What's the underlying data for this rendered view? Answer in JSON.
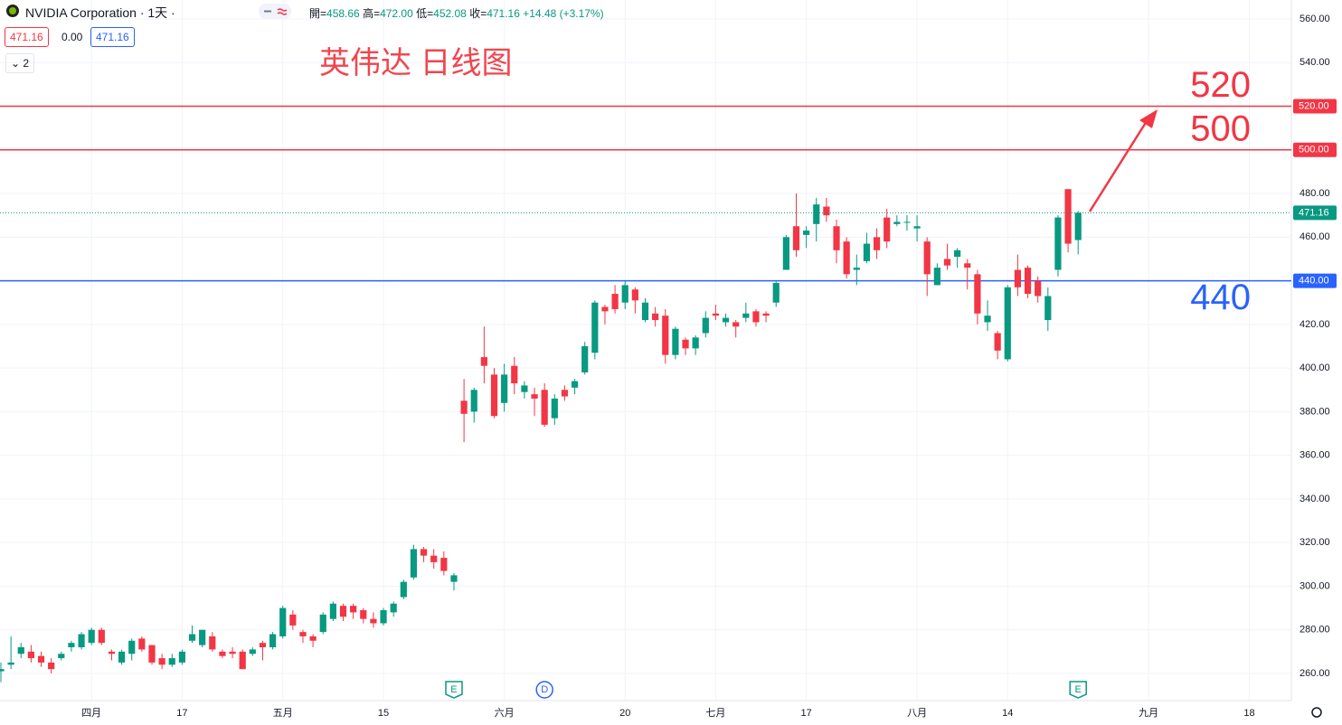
{
  "header": {
    "symbol": "NVIDIA Corporation · 1天 ·",
    "ohlc": [
      {
        "label": "開=",
        "value": "458.66"
      },
      {
        "label": "高=",
        "value": "472.00"
      },
      {
        "label": "低=",
        "value": "452.08"
      },
      {
        "label": "收=",
        "value": "471.16"
      }
    ],
    "change": "+14.48 (+3.17%)",
    "bid": "471.16",
    "spread": "0.00",
    "ask": "471.16",
    "indicator_count": "2"
  },
  "chart_data": {
    "type": "candlestick",
    "annotation": "英伟达 日线图",
    "up_color": "#089981",
    "down_color": "#f23645",
    "grid": true,
    "ylim": [
      247.56,
      568.7
    ],
    "yticks": [
      {
        "value": 260,
        "label": "260.00"
      },
      {
        "value": 280,
        "label": "280.00"
      },
      {
        "value": 300,
        "label": "300.00"
      },
      {
        "value": 320,
        "label": "320.00"
      },
      {
        "value": 340,
        "label": "340.00"
      },
      {
        "value": 360,
        "label": "360.00"
      },
      {
        "value": 380,
        "label": "380.00"
      },
      {
        "value": 400,
        "label": "400.00"
      },
      {
        "value": 420,
        "label": "420.00"
      },
      {
        "value": 440,
        "label": "440.00"
      },
      {
        "value": 460,
        "label": "460.00"
      },
      {
        "value": 480,
        "label": "480.00"
      },
      {
        "value": 500,
        "label": "500.00"
      },
      {
        "value": 520,
        "label": "520.00"
      },
      {
        "value": 540,
        "label": "540.00"
      },
      {
        "value": 560,
        "label": "560.00"
      }
    ],
    "levels": [
      {
        "value": 520,
        "label": "520",
        "axis_label": "520.00",
        "color": "#f23645"
      },
      {
        "value": 500,
        "label": "500",
        "axis_label": "500.00",
        "color": "#f23645"
      },
      {
        "value": 440,
        "label": "440",
        "axis_label": "440.00",
        "color": "#2962ff"
      }
    ],
    "last_price": 471.16,
    "categories": [
      null,
      null,
      null,
      null,
      null,
      null,
      null,
      null,
      null,
      "四月",
      null,
      null,
      null,
      null,
      null,
      null,
      null,
      null,
      "17",
      null,
      null,
      null,
      null,
      null,
      null,
      null,
      null,
      null,
      "五月",
      null,
      null,
      null,
      null,
      null,
      null,
      null,
      null,
      null,
      "15",
      null,
      null,
      null,
      null,
      null,
      null,
      null,
      null,
      null,
      null,
      null,
      "六月",
      null,
      null,
      null,
      null,
      null,
      null,
      null,
      null,
      null,
      null,
      null,
      "20",
      null,
      null,
      null,
      null,
      null,
      null,
      null,
      null,
      "七月",
      null,
      null,
      null,
      null,
      null,
      null,
      null,
      null,
      "17",
      null,
      null,
      null,
      null,
      null,
      null,
      null,
      null,
      null,
      null,
      "八月",
      null,
      null,
      null,
      null,
      null,
      null,
      null,
      null,
      "14",
      null,
      null,
      null,
      null,
      null,
      null,
      null,
      null,
      null,
      null,
      null,
      null,
      null,
      "九月",
      null,
      null,
      null,
      null,
      null,
      null,
      null,
      null,
      null,
      "18",
      null,
      null,
      null
    ],
    "events": [
      null,
      null,
      null,
      null,
      null,
      null,
      null,
      null,
      null,
      null,
      null,
      null,
      null,
      null,
      null,
      null,
      null,
      null,
      null,
      null,
      null,
      null,
      null,
      null,
      null,
      null,
      null,
      null,
      null,
      null,
      null,
      null,
      null,
      null,
      null,
      null,
      null,
      null,
      null,
      null,
      null,
      null,
      null,
      null,
      null,
      "E",
      null,
      null,
      null,
      null,
      null,
      null,
      null,
      null,
      "D",
      null,
      null,
      null,
      null,
      null,
      null,
      null,
      null,
      null,
      null,
      null,
      null,
      null,
      null,
      null,
      null,
      null,
      null,
      null,
      null,
      null,
      null,
      null,
      null,
      null,
      null,
      null,
      null,
      null,
      null,
      null,
      null,
      null,
      null,
      null,
      null,
      null,
      null,
      null,
      null,
      null,
      null,
      null,
      null,
      null,
      null,
      null,
      null,
      null,
      null,
      null,
      null,
      "E",
      null,
      null,
      null,
      null,
      null,
      null,
      null,
      null,
      null,
      null,
      null,
      null,
      null,
      null,
      null,
      null,
      null,
      null,
      null,
      null
    ],
    "open": [
      261,
      264,
      269,
      270,
      268,
      265,
      267,
      272,
      272,
      274,
      280,
      270,
      265,
      269,
      276,
      273,
      267,
      264,
      265,
      275,
      273,
      277,
      270,
      270,
      270,
      269,
      274,
      272,
      277,
      287,
      279,
      277,
      279,
      285,
      291,
      291,
      289,
      285,
      283,
      288,
      295,
      304,
      317,
      314,
      313,
      302,
      385,
      380,
      405,
      397,
      384,
      401,
      389,
      388,
      390,
      377,
      390,
      391,
      398,
      407,
      428,
      434,
      430,
      436,
      422,
      425,
      424,
      406,
      413,
      409,
      416,
      425,
      421,
      421,
      423,
      426,
      425,
      430,
      445,
      465,
      461,
      466,
      474,
      465,
      458,
      445,
      449,
      460,
      469,
      466,
      467,
      464,
      458,
      438,
      450,
      451,
      448,
      443,
      421,
      416,
      404,
      445,
      446,
      440,
      422,
      445,
      482,
      458.66,
      null,
      null,
      null,
      null,
      null,
      null,
      null,
      null,
      null,
      null,
      null,
      null,
      null,
      null,
      null,
      null,
      null,
      null,
      null,
      null
    ],
    "high": [
      265,
      277,
      274,
      273,
      270,
      267,
      270,
      275,
      279,
      281,
      281,
      271,
      271,
      276,
      277,
      273,
      269,
      269,
      271,
      282,
      280,
      279,
      271,
      272,
      271,
      272,
      275,
      279,
      291,
      289,
      280,
      278,
      288,
      293,
      292,
      292,
      290,
      288,
      290,
      293,
      303,
      319,
      318,
      317,
      316,
      306,
      395,
      391,
      419,
      400,
      402,
      405,
      394,
      391,
      393,
      388,
      392,
      395,
      412,
      431,
      429,
      438,
      440,
      437,
      432,
      428,
      427,
      419,
      414,
      415,
      426,
      429,
      425,
      422,
      430,
      427,
      426,
      440,
      461,
      480,
      465,
      478,
      478,
      468,
      460,
      452,
      462,
      464,
      473,
      470,
      470,
      470,
      460,
      448,
      457,
      455,
      450,
      445,
      431,
      417,
      438,
      452,
      447,
      442,
      437,
      470,
      482,
      472,
      null,
      null,
      null,
      null,
      null,
      null,
      null,
      null,
      null,
      null,
      null,
      null,
      null,
      null,
      null,
      null,
      null,
      null,
      null,
      null
    ],
    "low": [
      256,
      262,
      267,
      265,
      263,
      260,
      266,
      270,
      271,
      273,
      273,
      266,
      264,
      266,
      270,
      264,
      262,
      263,
      264,
      274,
      272,
      270,
      267,
      267,
      262,
      268,
      266,
      271,
      276,
      280,
      274,
      272,
      278,
      284,
      284,
      285,
      283,
      281,
      282,
      286,
      294,
      303,
      311,
      308,
      305,
      298,
      366,
      375,
      393,
      377,
      380,
      388,
      386,
      378,
      373,
      374,
      385,
      388,
      397,
      404,
      420,
      425,
      427,
      425,
      421,
      419,
      402,
      404,
      406,
      406,
      414,
      422,
      419,
      414,
      421,
      419,
      421,
      428,
      445,
      451,
      455,
      458,
      467,
      448,
      441,
      438,
      448,
      450,
      455,
      465,
      463,
      458,
      433,
      438,
      445,
      446,
      436,
      420,
      417,
      404,
      403,
      433,
      432,
      430,
      417,
      442,
      453,
      452.08,
      null,
      null,
      null,
      null,
      null,
      null,
      null,
      null,
      null,
      null,
      null,
      null,
      null,
      null,
      null,
      null,
      null,
      null,
      null,
      null
    ],
    "close": [
      262,
      265,
      272,
      267,
      265,
      262,
      269,
      274,
      278,
      280,
      274,
      269,
      270,
      275,
      271,
      265,
      264,
      267,
      270,
      278,
      280,
      271,
      268,
      269,
      262,
      271,
      272,
      278,
      290,
      282,
      277,
      275,
      287,
      292,
      286,
      288,
      285,
      283,
      289,
      292,
      302,
      317,
      314,
      311,
      307,
      305,
      379,
      390,
      401,
      378,
      397,
      393,
      392,
      386,
      374,
      386,
      387,
      394,
      410,
      430,
      426,
      427,
      438,
      431,
      430,
      422,
      406,
      418,
      409,
      414,
      423,
      424,
      423,
      419,
      425,
      421,
      424,
      439,
      460,
      454,
      463,
      475,
      470,
      454,
      443,
      446,
      457,
      454,
      458,
      467,
      467,
      465,
      443,
      446,
      447,
      454,
      446,
      425,
      424,
      408,
      437,
      437,
      434,
      433,
      433,
      469,
      457,
      471.16,
      null,
      null,
      null,
      null,
      null,
      null,
      null,
      null,
      null,
      null,
      null,
      null,
      null,
      null,
      null,
      null,
      null,
      null,
      null,
      null
    ]
  }
}
